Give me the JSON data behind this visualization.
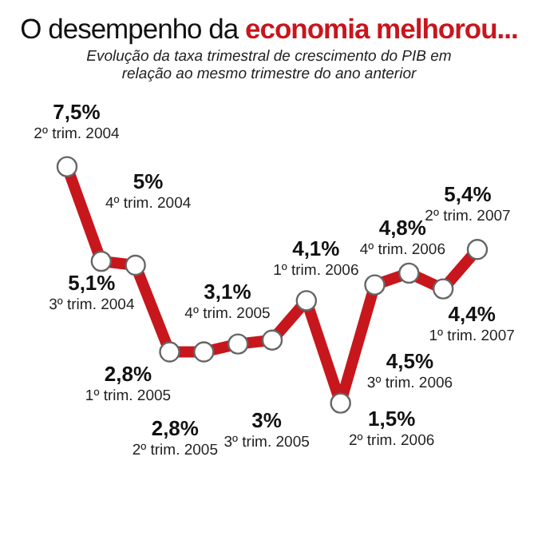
{
  "chart_data": {
    "type": "line",
    "title": "O desempenho da economia melhorou...",
    "subtitle": "Evolução da taxa trimestral de crescimento do PIB em relação ao mesmo trimestre do ano anterior",
    "categories": [
      null,
      null,
      null,
      null,
      null,
      null,
      null,
      null,
      null,
      null,
      null,
      null,
      null
    ],
    "series": [
      {
        "color": "#c8161d",
        "values": [
          7.5,
          5.1,
          5,
          2.8,
          2.8,
          3,
          3.1,
          4.1,
          1.5,
          4.5,
          4.8,
          4.4,
          5.4
        ],
        "value_labels": [
          "7,5%",
          "5,1%",
          "5%",
          "2,8%",
          "2,8%",
          "3%",
          "3,1%",
          "4,1%",
          "1,5%",
          "4,5%",
          "4,8%",
          "4,4%",
          "5,4%"
        ]
      }
    ],
    "annotations": [
      "2º trim. 2004",
      "3º trim. 2004",
      "4º trim. 2004",
      "1º trim. 2005",
      "2º trim. 2005",
      "3º trim. 2005",
      "4º trim. 2005",
      "1º trim. 2006",
      "2º trim. 2006",
      "3º trim. 2006",
      "4º trim. 2006",
      "1º trim. 2007",
      "2º trim. 2007"
    ],
    "data_labels": true,
    "marker": "circle",
    "grid": false,
    "legend": false
  }
}
